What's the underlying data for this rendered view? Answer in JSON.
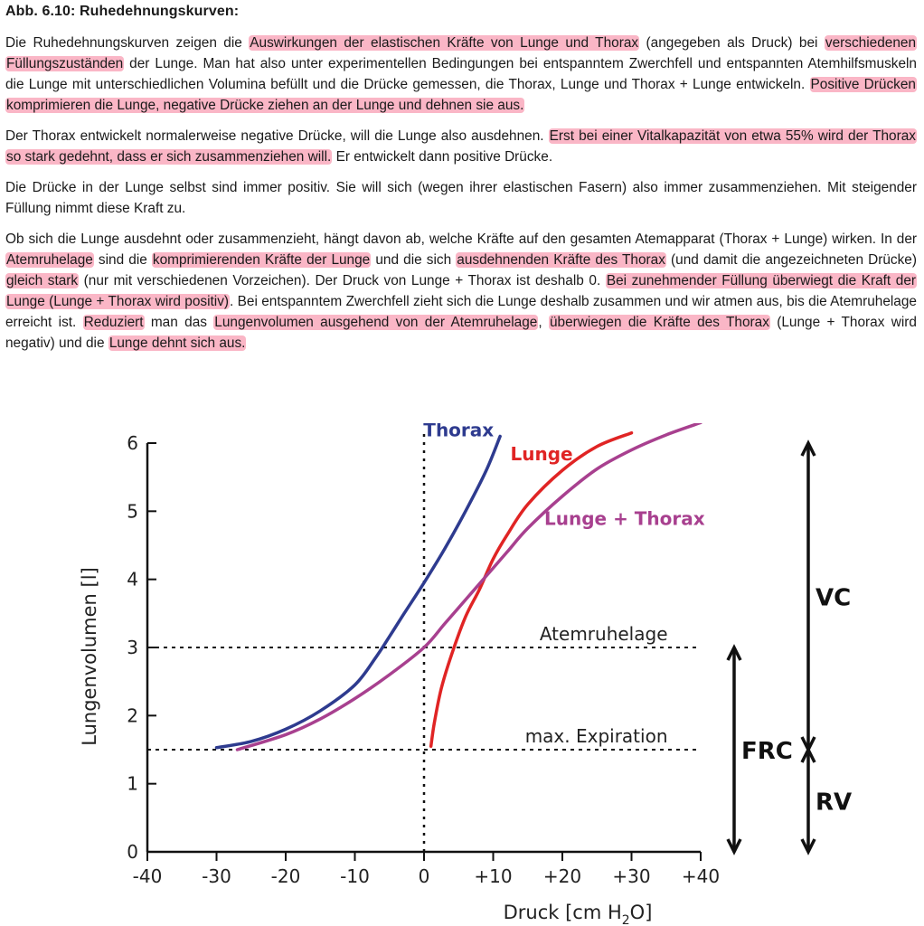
{
  "figure_title": "Abb. 6.10: Ruhedehnungskurven:",
  "paragraphs": [
    [
      {
        "t": "Die Ruhedehnungskurven zeigen die "
      },
      {
        "t": "Auswirkungen der elastischen Kräfte von Lunge und Thorax",
        "hl": true
      },
      {
        "t": " (angegeben als Druck) bei "
      },
      {
        "t": "verschiedenen Füllungszuständen",
        "hl": true
      },
      {
        "t": " der Lunge. Man hat also unter experimentellen Bedingungen bei entspanntem Zwerchfell und entspannten Atemhilfsmuskeln die Lunge mit unterschiedlichen Volumina befüllt und die Drücke gemessen, die Thorax, Lunge und Thorax + Lunge entwickeln. "
      },
      {
        "t": "Positive Drücken komprimieren die Lunge, negative Drücke ziehen an der Lunge und dehnen sie aus.",
        "hl": true
      }
    ],
    [
      {
        "t": "Der Thorax entwickelt normalerweise negative Drücke, will die Lunge also ausdehnen. "
      },
      {
        "t": "Erst bei einer Vitalkapazität von etwa 55% wird der Thorax so stark gedehnt, dass er sich zusammenziehen will.",
        "hl": true
      },
      {
        "t": " Er entwickelt dann positive Drücke."
      }
    ],
    [
      {
        "t": "Die Drücke in der Lunge selbst sind immer positiv. Sie will sich (wegen ihrer elastischen Fasern) also immer zusammenziehen. Mit steigender Füllung nimmt diese Kraft zu."
      }
    ],
    [
      {
        "t": "Ob sich die Lunge ausdehnt oder zusammenzieht, hängt davon ab, welche Kräfte auf den gesamten Atemapparat (Thorax + Lunge) wirken. In der "
      },
      {
        "t": "Atemruhelage",
        "hl": true
      },
      {
        "t": " sind die "
      },
      {
        "t": "komprimierenden Kräfte der Lunge",
        "hl": true
      },
      {
        "t": " und die sich "
      },
      {
        "t": "ausdehnenden Kräfte des Thorax",
        "hl": true
      },
      {
        "t": " (und damit die angezeichneten Drücke) "
      },
      {
        "t": "gleich stark",
        "hl": true
      },
      {
        "t": " (nur mit verschiedenen Vorzeichen). Der Druck von Lunge + Thorax ist deshalb 0. "
      },
      {
        "t": "Bei zunehmender Füllung überwiegt die Kraft der Lunge (Lunge + Thorax wird positiv)",
        "hl": true
      },
      {
        "t": ". Bei entspanntem Zwerchfell zieht sich die Lunge deshalb zusammen und wir atmen aus, bis die Atemruhelage erreicht ist. "
      },
      {
        "t": "Reduziert",
        "hl": true
      },
      {
        "t": " man das "
      },
      {
        "t": "Lungenvolumen ausgehend von der Atemruhelage",
        "hl": true
      },
      {
        "t": ", "
      },
      {
        "t": "überwiegen die Kräfte des Thorax",
        "hl": true
      },
      {
        "t": " (Lunge + Thorax wird negativ) und die "
      },
      {
        "t": "Lunge dehnt sich aus.",
        "hl": true
      }
    ]
  ],
  "highlight_color": "#f45078",
  "chart_data": {
    "type": "line",
    "xlabel_main": "Druck [cm H",
    "xlabel_sub": "2",
    "xlabel_end": "O]",
    "ylabel": "Lungenvolumen [l]",
    "xlim": [
      -40,
      40
    ],
    "ylim": [
      0,
      6
    ],
    "x_ticks": [
      {
        "v": -40,
        "label": "-40"
      },
      {
        "v": -30,
        "label": "-30"
      },
      {
        "v": -20,
        "label": "-20"
      },
      {
        "v": -10,
        "label": "-10"
      },
      {
        "v": 0,
        "label": "0"
      },
      {
        "v": 10,
        "label": "+10"
      },
      {
        "v": 20,
        "label": "+20"
      },
      {
        "v": 30,
        "label": "+30"
      },
      {
        "v": 40,
        "label": "+40"
      }
    ],
    "y_ticks": [
      {
        "v": 0,
        "label": "0"
      },
      {
        "v": 1,
        "label": "1"
      },
      {
        "v": 2,
        "label": "2"
      },
      {
        "v": 3,
        "label": "3"
      },
      {
        "v": 4,
        "label": "4"
      },
      {
        "v": 5,
        "label": "5"
      },
      {
        "v": 6,
        "label": "6"
      }
    ],
    "series": [
      {
        "name": "Thorax",
        "color": "#2e3b8f",
        "points": [
          [
            -30,
            1.53
          ],
          [
            -25,
            1.62
          ],
          [
            -20,
            1.8
          ],
          [
            -15,
            2.07
          ],
          [
            -10,
            2.45
          ],
          [
            -7,
            2.85
          ],
          [
            -5,
            3.16
          ],
          [
            -3,
            3.48
          ],
          [
            0,
            3.95
          ],
          [
            3,
            4.45
          ],
          [
            6,
            5.0
          ],
          [
            9,
            5.6
          ],
          [
            11,
            6.1
          ]
        ]
      },
      {
        "name": "Lunge",
        "color": "#e02424",
        "points": [
          [
            1,
            1.55
          ],
          [
            1.5,
            1.9
          ],
          [
            2.5,
            2.4
          ],
          [
            4,
            2.9
          ],
          [
            6,
            3.45
          ],
          [
            8,
            3.85
          ],
          [
            10,
            4.3
          ],
          [
            12,
            4.65
          ],
          [
            15,
            5.1
          ],
          [
            20,
            5.6
          ],
          [
            25,
            5.95
          ],
          [
            30,
            6.15
          ]
        ]
      },
      {
        "name": "Lunge + Thorax",
        "color": "#a8408f",
        "points": [
          [
            -27,
            1.5
          ],
          [
            -20,
            1.72
          ],
          [
            -15,
            1.95
          ],
          [
            -10,
            2.25
          ],
          [
            -5,
            2.6
          ],
          [
            0,
            3.0
          ],
          [
            3,
            3.35
          ],
          [
            6,
            3.7
          ],
          [
            9,
            4.05
          ],
          [
            12,
            4.4
          ],
          [
            15,
            4.75
          ],
          [
            20,
            5.22
          ],
          [
            25,
            5.62
          ],
          [
            30,
            5.9
          ],
          [
            35,
            6.12
          ],
          [
            40,
            6.3
          ]
        ]
      }
    ],
    "series_labels": [
      {
        "name": "Thorax",
        "x": 5,
        "y": 6.1
      },
      {
        "name": "Lunge",
        "x": 17,
        "y": 5.75
      },
      {
        "name": "Lunge + Thorax",
        "x": 29,
        "y": 4.8
      }
    ],
    "reference_lines": [
      {
        "name": "Atemruhelage",
        "y": 3
      },
      {
        "name": "max. Expiration",
        "y": 1.5
      }
    ],
    "vertical_reference_x": 0,
    "brackets": [
      {
        "name": "VC",
        "from": 1.5,
        "to": 6.0
      },
      {
        "name": "RV",
        "from": 0,
        "to": 1.5
      },
      {
        "name": "FRC",
        "from": 0,
        "to": 3.0
      }
    ]
  }
}
